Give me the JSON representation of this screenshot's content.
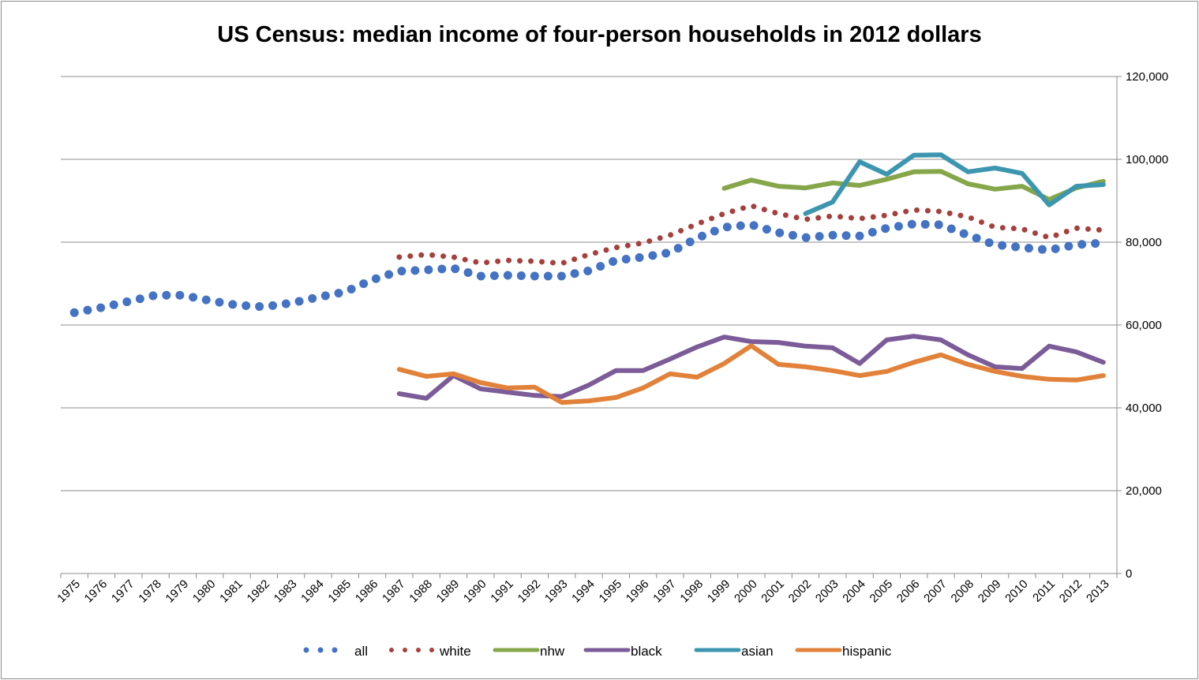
{
  "chart_data": {
    "type": "line",
    "title": "US Census: median income of four-person households in 2012 dollars",
    "xlabel": "",
    "ylabel": "",
    "ylim": [
      0,
      120000
    ],
    "yticks": [
      "0",
      "20,000",
      "40,000",
      "60,000",
      "80,000",
      "100,000",
      "120,000"
    ],
    "y_axis_side": "right",
    "grid": true,
    "legend_position": "bottom",
    "categories": [
      "1975",
      "1976",
      "1977",
      "1978",
      "1979",
      "1980",
      "1981",
      "1982",
      "1983",
      "1984",
      "1985",
      "1986",
      "1987",
      "1988",
      "1989",
      "1990",
      "1991",
      "1992",
      "1993",
      "1994",
      "1995",
      "1996",
      "1997",
      "1998",
      "1999",
      "2000",
      "2001",
      "2002",
      "2003",
      "2004",
      "2005",
      "2006",
      "2007",
      "2008",
      "2009",
      "2010",
      "2011",
      "2012",
      "2013"
    ],
    "series": [
      {
        "name": "all",
        "color": "#4472c4",
        "style": "round-dot-large",
        "values": [
          63000,
          64200,
          65700,
          67200,
          67200,
          65900,
          64800,
          64400,
          65300,
          66700,
          68000,
          70900,
          73000,
          73300,
          73700,
          71800,
          72000,
          71800,
          71800,
          73100,
          75600,
          76400,
          77500,
          81000,
          83600,
          84200,
          82300,
          81100,
          81700,
          81500,
          83400,
          84400,
          84200,
          81700,
          79400,
          78700,
          78100,
          79400,
          79800
        ]
      },
      {
        "name": "white",
        "color": "#a5403d",
        "style": "round-dot",
        "values": [
          null,
          null,
          null,
          null,
          null,
          null,
          null,
          null,
          null,
          null,
          null,
          null,
          76400,
          77000,
          76400,
          75000,
          75600,
          75400,
          74900,
          77000,
          78700,
          79800,
          81700,
          84400,
          86900,
          88800,
          86900,
          85500,
          86300,
          85700,
          86500,
          87800,
          87400,
          86100,
          83600,
          83200,
          81100,
          83400,
          82900
        ]
      },
      {
        "name": "nhw",
        "color": "#86a64a",
        "style": "solid",
        "values": [
          null,
          null,
          null,
          null,
          null,
          null,
          null,
          null,
          null,
          null,
          null,
          null,
          null,
          null,
          null,
          null,
          null,
          null,
          null,
          null,
          null,
          null,
          null,
          null,
          93000,
          95000,
          93500,
          93100,
          94300,
          93700,
          95200,
          97000,
          97100,
          94100,
          92800,
          93500,
          90300,
          93100,
          94700
        ]
      },
      {
        "name": "black",
        "color": "#7b5b98",
        "style": "solid",
        "values": [
          null,
          null,
          null,
          null,
          null,
          null,
          null,
          null,
          null,
          null,
          null,
          null,
          43400,
          42300,
          47800,
          44600,
          43800,
          43000,
          42700,
          45500,
          49000,
          49000,
          51800,
          54700,
          57100,
          56000,
          55800,
          54900,
          54500,
          50700,
          56400,
          57300,
          56400,
          52800,
          49900,
          49500,
          54900,
          53500,
          51000
        ]
      },
      {
        "name": "asian",
        "color": "#3d96b0",
        "style": "solid",
        "values": [
          null,
          null,
          null,
          null,
          null,
          null,
          null,
          null,
          null,
          null,
          null,
          null,
          null,
          null,
          null,
          null,
          null,
          null,
          null,
          null,
          null,
          null,
          null,
          null,
          null,
          null,
          null,
          86900,
          89700,
          99400,
          96400,
          101000,
          101100,
          97000,
          97900,
          96600,
          89000,
          93500,
          93900
        ]
      },
      {
        "name": "hispanic",
        "color": "#e2823a",
        "style": "solid",
        "values": [
          null,
          null,
          null,
          null,
          null,
          null,
          null,
          null,
          null,
          null,
          null,
          null,
          49300,
          47600,
          48200,
          46100,
          44800,
          45000,
          41300,
          41700,
          42500,
          44800,
          48200,
          47400,
          50700,
          55000,
          50500,
          49900,
          49000,
          47800,
          48800,
          51000,
          52800,
          50500,
          48800,
          47600,
          46900,
          46700,
          47800
        ]
      }
    ]
  }
}
